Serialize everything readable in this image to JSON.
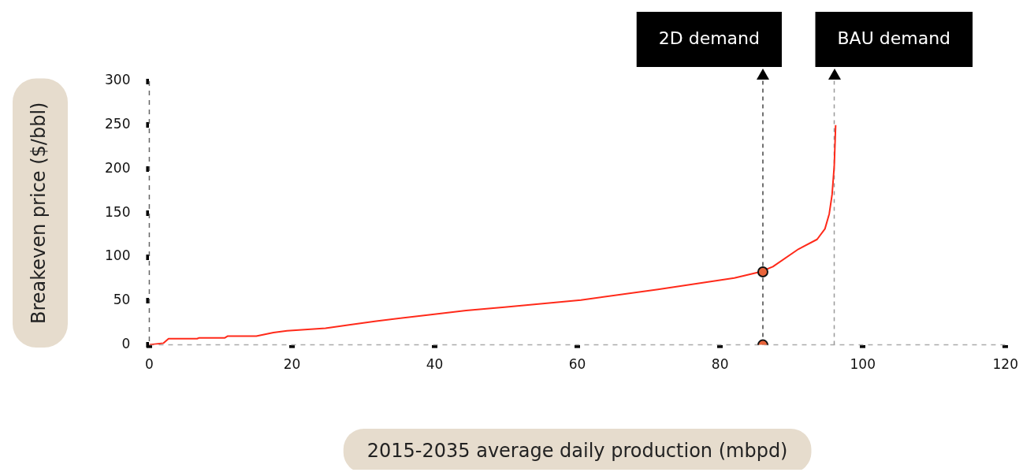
{
  "chart_data": {
    "type": "line",
    "xlabel": "2015-2035 average daily production (mbpd)",
    "ylabel": "Breakeven price ($/bbl)",
    "xlim": [
      0,
      120
    ],
    "xticks": [
      0,
      20,
      40,
      60,
      80,
      100,
      120
    ],
    "ylim": [
      0,
      300
    ],
    "yticks": [
      0,
      50,
      100,
      150,
      200,
      250,
      300
    ],
    "series": [
      {
        "type": "line",
        "color": "#ff2a1a",
        "marker": "none",
        "x": [
          0,
          2,
          2.7,
          6.7,
          7,
          10.6,
          11,
          15,
          17.4,
          19.3,
          24.7,
          28.2,
          31.8,
          39,
          44.4,
          49.8,
          60.5,
          71.3,
          82,
          85.6,
          87.4,
          91,
          93.6,
          94.7,
          95.3,
          95.7,
          96,
          96.2
        ],
        "values": [
          0,
          2,
          7,
          7,
          8,
          8,
          10,
          10,
          14,
          16,
          19,
          23,
          27,
          34,
          39,
          43,
          51,
          63,
          76,
          83,
          89,
          109,
          120,
          132,
          149,
          171,
          203,
          250
        ]
      },
      {
        "type": "scatter",
        "color": "#e8643a",
        "marker": "circle",
        "x": [
          86,
          86
        ],
        "values": [
          83,
          0
        ]
      }
    ],
    "ref_lines": [
      {
        "axis": "x",
        "value": 86,
        "label": "2D demand",
        "color": "#444444",
        "line_style": "dashed"
      },
      {
        "axis": "x",
        "value": 96,
        "label": "BAU demand",
        "color": "#999999",
        "line_style": "dashed"
      }
    ]
  }
}
